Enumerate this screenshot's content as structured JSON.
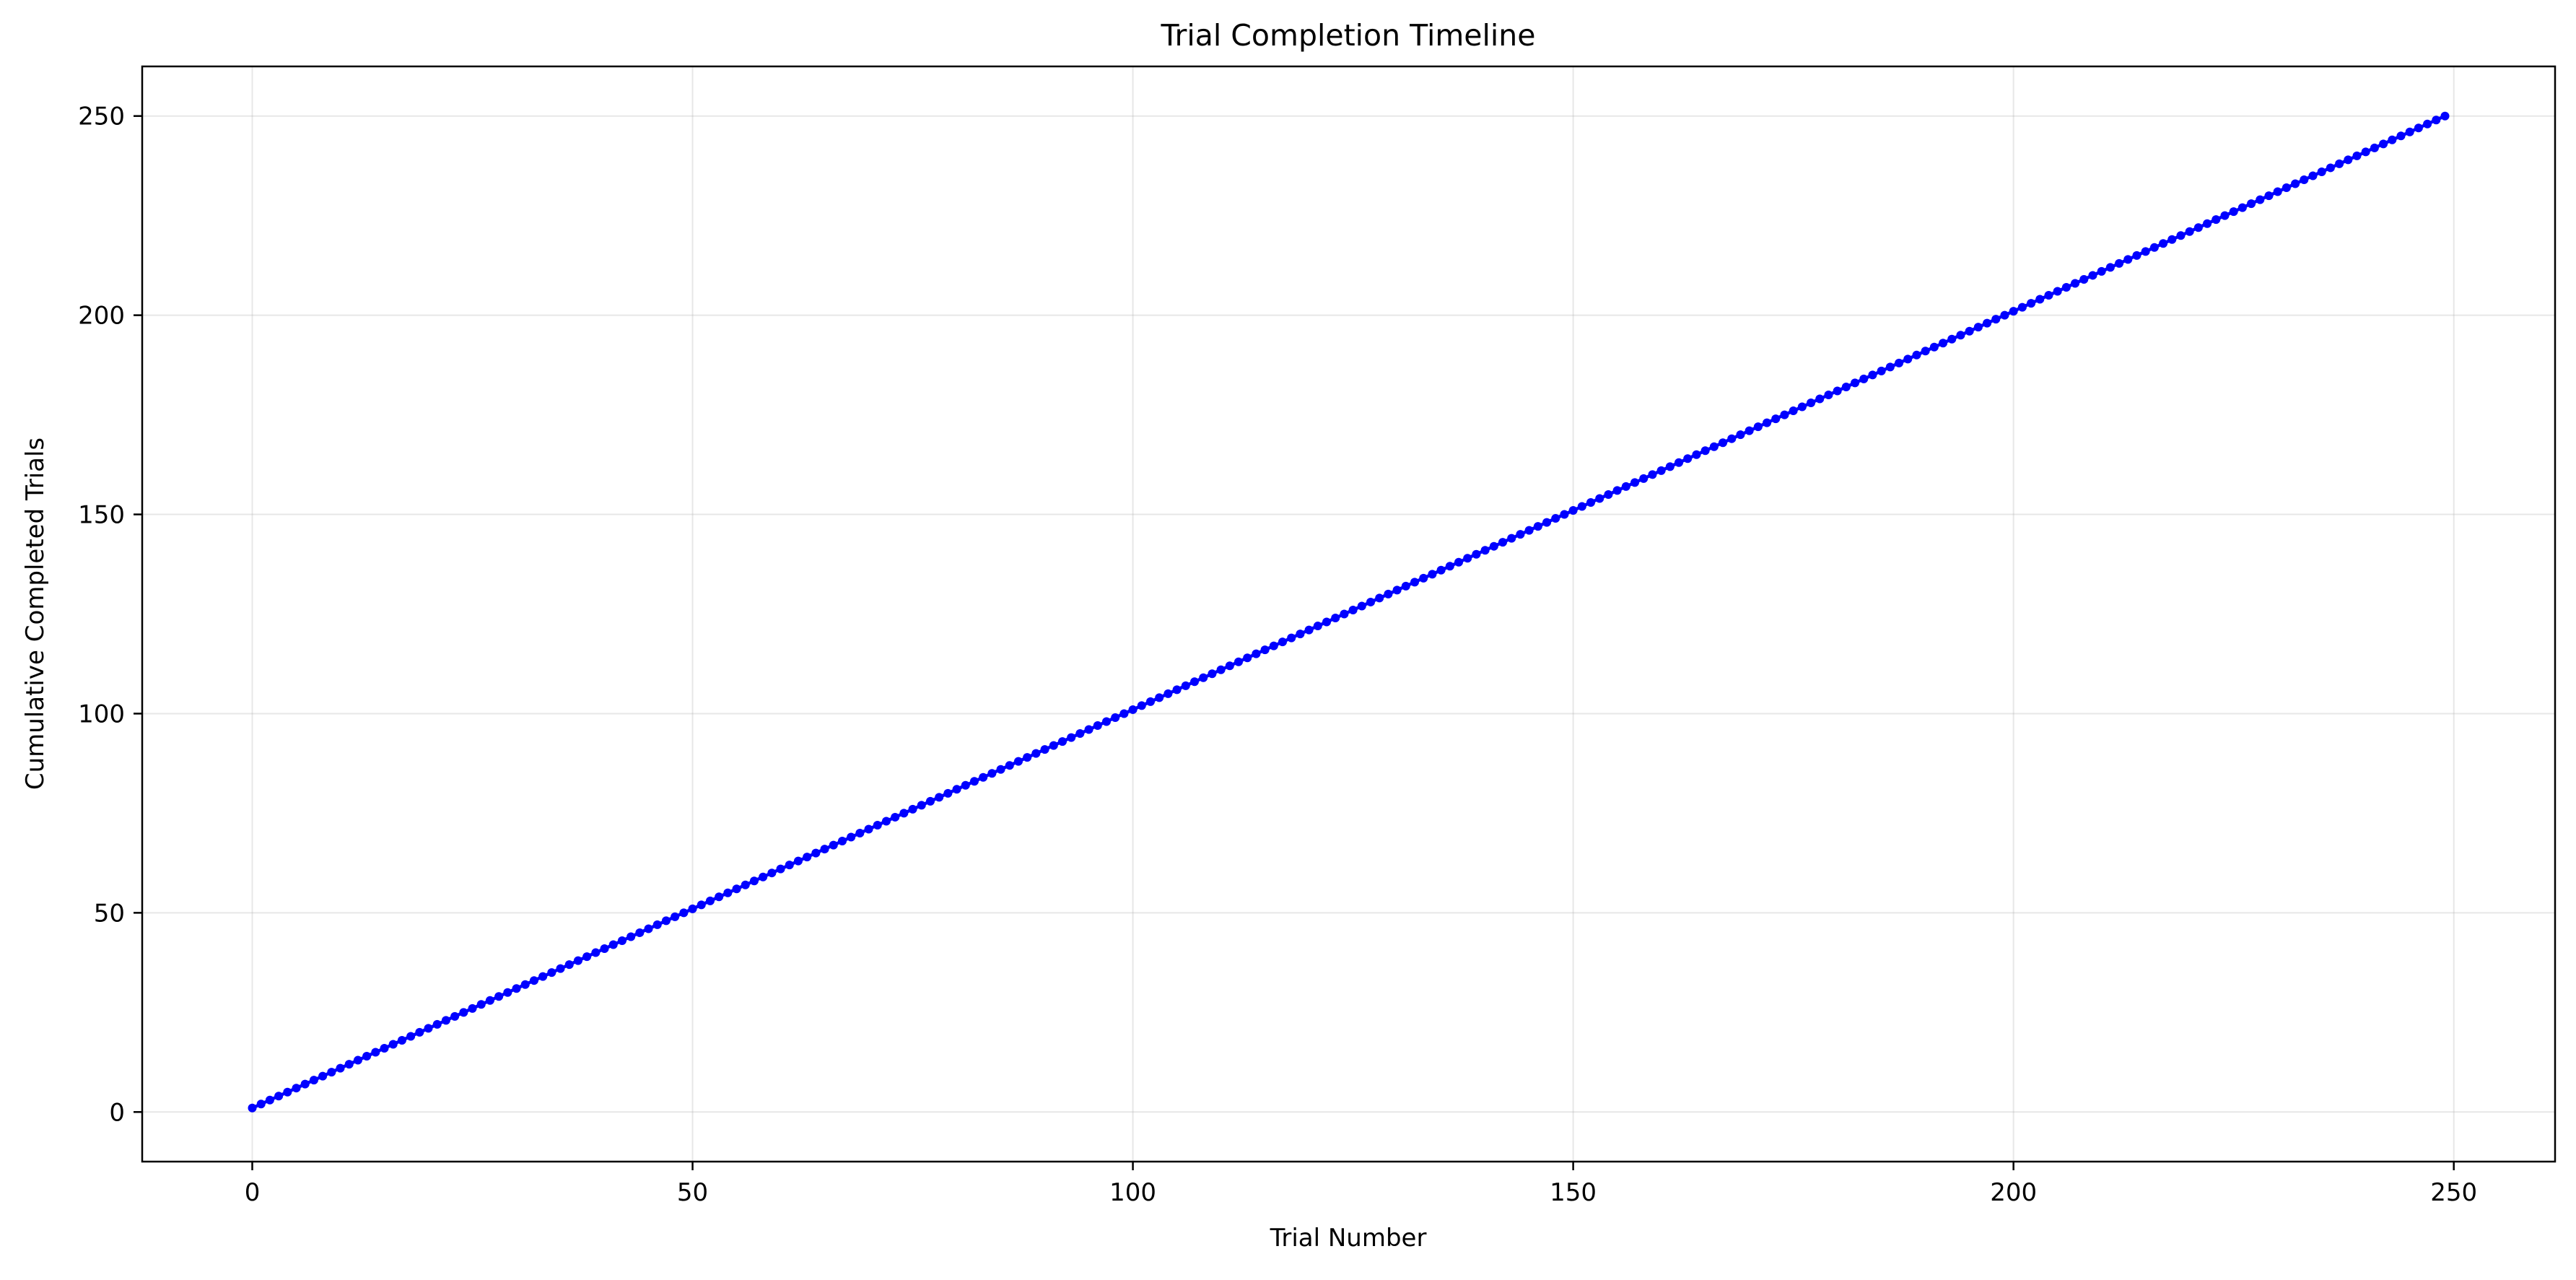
{
  "chart_data": {
    "type": "line",
    "title": "Trial Completion Timeline",
    "xlabel": "Trial Number",
    "ylabel": "Cumulative Completed Trials",
    "xlim": [
      -12.5,
      261.5
    ],
    "ylim": [
      -12.45,
      262.45
    ],
    "xticks": [
      0,
      50,
      100,
      150,
      200,
      250
    ],
    "yticks": [
      0,
      50,
      100,
      150,
      200,
      250
    ],
    "xtick_labels": [
      "0",
      "50",
      "100",
      "150",
      "200",
      "250"
    ],
    "ytick_labels": [
      "0",
      "50",
      "100",
      "150",
      "200",
      "250"
    ],
    "grid": true,
    "series": [
      {
        "color": "#0000ff",
        "marker": "circle",
        "x_start": 0,
        "x_end": 249,
        "x_step": 1,
        "y_start": 1,
        "y_step": 1,
        "point_count": 250
      }
    ]
  }
}
